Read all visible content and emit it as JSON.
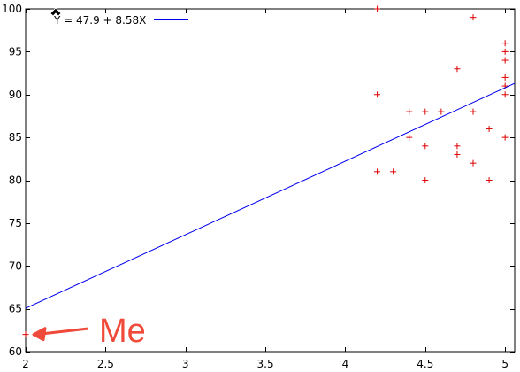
{
  "chart_data": {
    "type": "scatter",
    "title": "",
    "xlabel": "",
    "ylabel": "",
    "xlim": [
      2,
      5.06
    ],
    "ylim": [
      60,
      100
    ],
    "x_ticks": [
      2,
      2.5,
      3,
      3.5,
      4,
      4.5,
      5
    ],
    "x_tick_labels": [
      "2",
      "2.5",
      "3",
      "3.5",
      "4",
      "4.5",
      "5"
    ],
    "y_ticks": [
      60,
      65,
      70,
      75,
      80,
      85,
      90,
      95,
      100
    ],
    "y_tick_labels": [
      "60",
      "65",
      "70",
      "75",
      "80",
      "85",
      "90",
      "95",
      "100"
    ],
    "grid": false,
    "legend_position": "top-left",
    "series": [
      {
        "name": "",
        "kind": "points",
        "marker": "plus",
        "color": "#dd0000",
        "points": [
          [
            2.0,
            62
          ],
          [
            4.2,
            100
          ],
          [
            4.2,
            90
          ],
          [
            4.2,
            81
          ],
          [
            4.3,
            81
          ],
          [
            4.4,
            88
          ],
          [
            4.4,
            85
          ],
          [
            4.5,
            88
          ],
          [
            4.5,
            84
          ],
          [
            4.5,
            80
          ],
          [
            4.6,
            88
          ],
          [
            4.7,
            93
          ],
          [
            4.7,
            84
          ],
          [
            4.7,
            83
          ],
          [
            4.8,
            99
          ],
          [
            4.8,
            88
          ],
          [
            4.8,
            82
          ],
          [
            4.9,
            86
          ],
          [
            4.9,
            80
          ],
          [
            5.0,
            96
          ],
          [
            5.0,
            95
          ],
          [
            5.0,
            94
          ],
          [
            5.0,
            92
          ],
          [
            5.0,
            91
          ],
          [
            5.0,
            90
          ],
          [
            5.0,
            85
          ]
        ]
      },
      {
        "name": "Y = 47.9 + 8.58X",
        "kind": "line",
        "color": "#0000ee",
        "intercept": 47.9,
        "slope": 8.58
      }
    ],
    "annotations": [
      {
        "text": "Me",
        "color": "#f04a3a",
        "target": [
          2.0,
          62
        ]
      }
    ]
  }
}
